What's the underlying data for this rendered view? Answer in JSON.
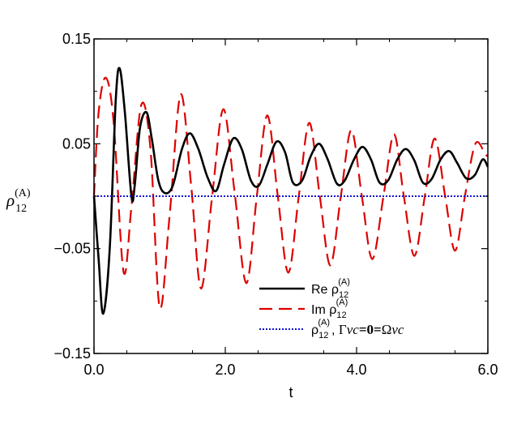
{
  "chart_data": {
    "type": "line",
    "xlabel": "t",
    "ylabel": {
      "main": "ρ",
      "sub": "12",
      "sup": "(A)"
    },
    "xlim": [
      0,
      6
    ],
    "ylim": [
      -0.15,
      0.15
    ],
    "x_ticks": [
      {
        "value": 0,
        "label": "0.0"
      },
      {
        "value": 2,
        "label": "2.0"
      },
      {
        "value": 4,
        "label": "4.0"
      },
      {
        "value": 6,
        "label": "6.0"
      }
    ],
    "y_ticks": [
      {
        "value": 0.15,
        "label": "0.15"
      },
      {
        "value": 0.05,
        "label": "0.05"
      },
      {
        "value": -0.05,
        "label": "−0.05"
      },
      {
        "value": -0.15,
        "label": "−0.15"
      }
    ],
    "legend_position": "bottom-right",
    "series": [
      {
        "name": "Re ρ12(A)",
        "legend": {
          "prefix": "Re ρ",
          "sub": "12",
          "sup": "(A)"
        },
        "color": "#000000",
        "style": "solid",
        "x": [
          0.0,
          0.07,
          0.14,
          0.24,
          0.33,
          0.39,
          0.47,
          0.57,
          0.62,
          0.7,
          0.8,
          0.88,
          0.98,
          1.08,
          1.2,
          1.34,
          1.46,
          1.59,
          1.73,
          1.86,
          1.98,
          2.12,
          2.25,
          2.39,
          2.51,
          2.64,
          2.78,
          2.91,
          3.03,
          3.17,
          3.3,
          3.43,
          3.56,
          3.7,
          3.82,
          3.96,
          4.09,
          4.22,
          4.35,
          4.48,
          4.62,
          4.75,
          4.88,
          5.01,
          5.14,
          5.28,
          5.41,
          5.53,
          5.67,
          5.8,
          5.92,
          6.0
        ],
        "y": [
          0.0,
          -0.06,
          -0.112,
          -0.05,
          0.09,
          0.122,
          0.08,
          0.0,
          0.01,
          0.065,
          0.08,
          0.055,
          0.015,
          0.003,
          0.01,
          0.045,
          0.06,
          0.045,
          0.018,
          0.005,
          0.03,
          0.055,
          0.045,
          0.015,
          0.01,
          0.03,
          0.052,
          0.042,
          0.013,
          0.015,
          0.038,
          0.05,
          0.035,
          0.012,
          0.015,
          0.035,
          0.047,
          0.035,
          0.013,
          0.015,
          0.035,
          0.045,
          0.034,
          0.013,
          0.016,
          0.035,
          0.043,
          0.032,
          0.017,
          0.02,
          0.035,
          0.028
        ]
      },
      {
        "name": "Im ρ12(A)",
        "legend": {
          "prefix": "Im ρ",
          "sub": "12",
          "sup": "(A)"
        },
        "color": "#dd0000",
        "style": "dashed",
        "x": [
          0.0,
          0.07,
          0.18,
          0.3,
          0.45,
          0.57,
          0.72,
          0.86,
          1.0,
          1.15,
          1.32,
          1.48,
          1.63,
          1.8,
          1.97,
          2.14,
          2.32,
          2.48,
          2.64,
          2.8,
          2.96,
          3.12,
          3.28,
          3.44,
          3.6,
          3.76,
          3.92,
          4.08,
          4.24,
          4.41,
          4.57,
          4.72,
          4.88,
          5.04,
          5.19,
          5.35,
          5.5,
          5.65,
          5.81,
          5.96,
          6.0
        ],
        "y": [
          0.0,
          0.08,
          0.113,
          0.07,
          -0.072,
          -0.01,
          0.087,
          0.045,
          -0.106,
          -0.02,
          0.097,
          0.01,
          -0.088,
          0.0,
          0.083,
          0.005,
          -0.083,
          0.0,
          0.077,
          0.0,
          -0.073,
          0.0,
          0.07,
          0.0,
          -0.066,
          0.0,
          0.063,
          0.0,
          -0.06,
          0.0,
          0.059,
          0.0,
          -0.057,
          0.0,
          0.055,
          0.0,
          -0.052,
          0.0,
          0.05,
          0.04,
          0.038
        ]
      },
      {
        "name": "ρ12(A), Γvc=0=Ωvc",
        "legend": {
          "prefix": "ρ",
          "sub": "12",
          "sup": "(A)",
          "cond_gamma": "Γ",
          "cond_vc1": "vc",
          "cond_eq": "=0=",
          "cond_omega": "Ω",
          "cond_vc2": "vc"
        },
        "color": "#1010d0",
        "style": "dotted",
        "x": [
          0.0,
          6.0
        ],
        "y": [
          0.0,
          0.0
        ]
      }
    ]
  }
}
